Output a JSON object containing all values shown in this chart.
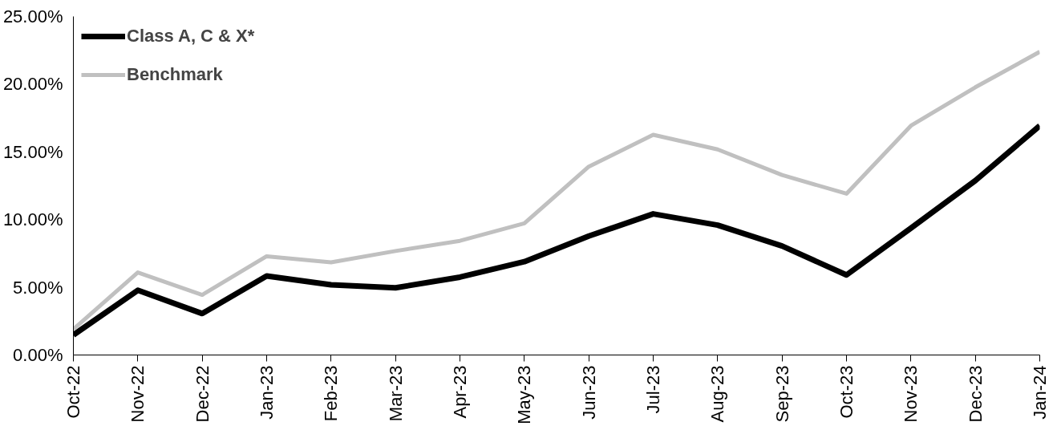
{
  "chart_data": {
    "type": "line",
    "categories": [
      "Oct-22",
      "Nov-22",
      "Dec-22",
      "Jan-23",
      "Feb-23",
      "Mar-23",
      "Apr-23",
      "May-23",
      "Jun-23",
      "Jul-23",
      "Aug-23",
      "Sep-23",
      "Oct-23",
      "Nov-23",
      "Dec-23",
      "Jan-24"
    ],
    "series": [
      {
        "name": "Class A, C & X*",
        "color": "#000000",
        "values": [
          1.48,
          4.78,
          3.06,
          5.84,
          5.18,
          4.96,
          5.75,
          6.89,
          8.78,
          10.42,
          9.59,
          8.05,
          5.91,
          9.37,
          12.88,
          16.93
        ]
      },
      {
        "name": "Benchmark",
        "color": "#c0c0c0",
        "values": [
          1.9,
          6.1,
          4.44,
          7.29,
          6.84,
          7.68,
          8.43,
          9.72,
          13.91,
          16.26,
          15.18,
          13.29,
          11.91,
          16.93,
          19.77,
          22.39
        ]
      }
    ],
    "ylim": [
      0,
      25
    ],
    "yticks": [
      {
        "value": 0,
        "label": "0.00%"
      },
      {
        "value": 5,
        "label": "5.00%"
      },
      {
        "value": 10,
        "label": "10.00%"
      },
      {
        "value": 15,
        "label": "15.00%"
      },
      {
        "value": 20,
        "label": "20.00%"
      },
      {
        "value": 25,
        "label": "25.00%"
      }
    ],
    "grid": false,
    "legend": "top left",
    "marker": "none",
    "line_style": "solid"
  }
}
